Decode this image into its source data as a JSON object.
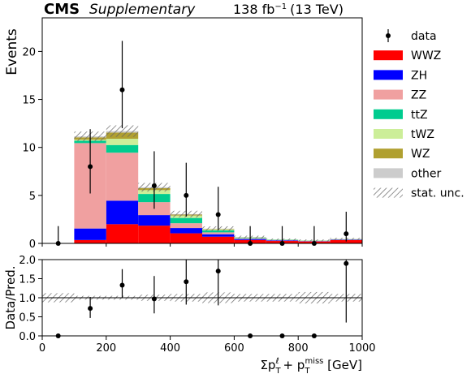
{
  "header": {
    "experiment": "CMS",
    "qualifier": "Supplementary",
    "lumi_value": "138 fb",
    "lumi_exp": "−1",
    "energy": "(13 TeV)"
  },
  "chart_data": [
    {
      "type": "bar",
      "stacked": true,
      "panel": "main",
      "ylabel": "Events",
      "xlim": [
        0,
        1000
      ],
      "ylim": [
        0,
        23.5
      ],
      "yticks": [
        0,
        5,
        10,
        15,
        20
      ],
      "bin_edges": [
        0,
        100,
        200,
        300,
        400,
        500,
        600,
        700,
        800,
        900,
        1000
      ],
      "series": [
        {
          "name": "WWZ",
          "color": "#ff0000",
          "values": [
            0.0,
            0.35,
            2.0,
            1.85,
            1.05,
            0.7,
            0.35,
            0.25,
            0.2,
            0.35
          ]
        },
        {
          "name": "ZH",
          "color": "#0000ff",
          "values": [
            0.0,
            1.2,
            2.45,
            1.1,
            0.55,
            0.25,
            0.1,
            0.05,
            0.03,
            0.03
          ]
        },
        {
          "name": "ZZ",
          "color": "#f0a0a0",
          "values": [
            0.0,
            8.9,
            5.0,
            1.35,
            0.5,
            0.2,
            0.07,
            0.04,
            0.03,
            0.03
          ]
        },
        {
          "name": "ttZ",
          "color": "#00cc8f",
          "values": [
            0.0,
            0.25,
            0.8,
            0.85,
            0.55,
            0.2,
            0.06,
            0.03,
            0.02,
            0.02
          ]
        },
        {
          "name": "tWZ",
          "color": "#ccee99",
          "values": [
            0.0,
            0.1,
            0.65,
            0.4,
            0.25,
            0.1,
            0.03,
            0.02,
            0.01,
            0.01
          ]
        },
        {
          "name": "WZ",
          "color": "#b0a030",
          "values": [
            0.0,
            0.25,
            0.65,
            0.2,
            0.1,
            0.05,
            0.02,
            0.01,
            0.01,
            0.01
          ]
        },
        {
          "name": "other",
          "color": "#cccccc",
          "values": [
            0.0,
            0.1,
            0.15,
            0.1,
            0.05,
            0.03,
            0.02,
            0.01,
            0.01,
            0.01
          ]
        }
      ],
      "unc": [
        0,
        0.5,
        0.6,
        0.45,
        0.35,
        0.25,
        0.15,
        0.1,
        0.1,
        0.12
      ],
      "data": {
        "name": "data",
        "x": [
          50,
          150,
          250,
          350,
          450,
          550,
          650,
          750,
          850,
          950
        ],
        "y": [
          0,
          8,
          16,
          6,
          5,
          3,
          0,
          0,
          0,
          1
        ],
        "err_low": [
          0,
          2.8,
          4.0,
          2.4,
          2.2,
          1.6,
          0,
          0,
          0,
          0.8
        ],
        "err_high": [
          1.8,
          3.9,
          5.1,
          3.6,
          3.4,
          2.9,
          1.8,
          1.8,
          1.8,
          2.3
        ]
      },
      "legend": {
        "placement": "right",
        "data_label": "data",
        "unc_label": "stat. unc."
      }
    },
    {
      "type": "scatter",
      "panel": "ratio",
      "ylabel": "Data/Pred.",
      "xlabel": "Σp",
      "xlabel_sub1": "T",
      "xlabel_sup1": "ℓ",
      "xlabel_mid": " + p",
      "xlabel_sub2": "T",
      "xlabel_sup2": "miss",
      "xlabel_unit": " [GeV]",
      "xlim": [
        0,
        1000
      ],
      "ylim": [
        0,
        2.0
      ],
      "xticks": [
        0,
        200,
        400,
        600,
        800,
        1000
      ],
      "yticks": [
        0.0,
        0.5,
        1.0,
        1.5,
        2.0
      ],
      "x": [
        50,
        150,
        250,
        350,
        450,
        550,
        650,
        750,
        850,
        950
      ],
      "y": [
        0.0,
        0.72,
        1.33,
        0.97,
        1.42,
        1.7,
        0.0,
        0.0,
        0.0,
        1.9
      ],
      "err_low": [
        0.0,
        0.25,
        0.33,
        0.38,
        0.6,
        0.9,
        0.0,
        0.0,
        0.0,
        1.55
      ],
      "err_high": [
        0.0,
        0.3,
        0.42,
        0.6,
        0.9,
        1.0,
        0.0,
        0.0,
        0.0,
        2.2
      ],
      "unc": [
        0.12,
        0.05,
        0.05,
        0.08,
        0.1,
        0.14,
        0.1,
        0.1,
        0.15,
        0.1
      ]
    }
  ]
}
